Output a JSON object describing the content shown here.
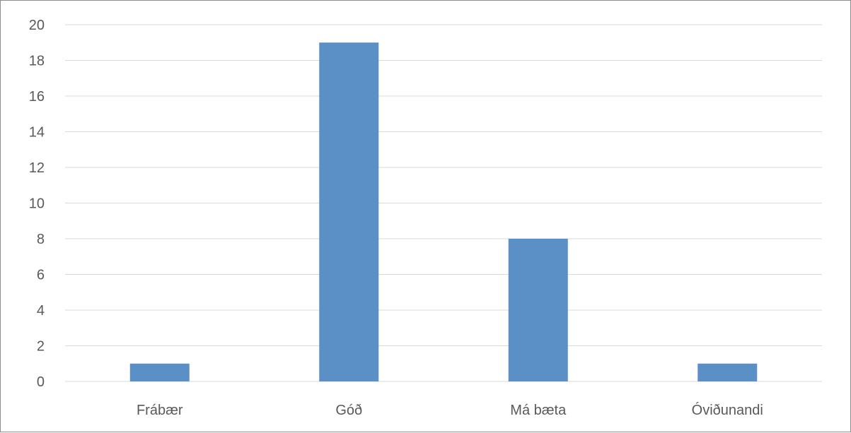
{
  "chart_data": {
    "type": "bar",
    "title": "",
    "xlabel": "",
    "ylabel": "",
    "categories": [
      "Frábær",
      "Góð",
      "Má bæta",
      "Óviðunandi"
    ],
    "values": [
      1,
      19,
      8,
      1
    ],
    "ylim": [
      0,
      20
    ],
    "yticks": [
      "0",
      "2",
      "4",
      "6",
      "8",
      "10",
      "12",
      "14",
      "16",
      "18",
      "20"
    ],
    "grid": true,
    "legend": "none",
    "bar_color": "#5b90c6",
    "grid_color": "#d9d9d9",
    "text_color": "#595959"
  }
}
